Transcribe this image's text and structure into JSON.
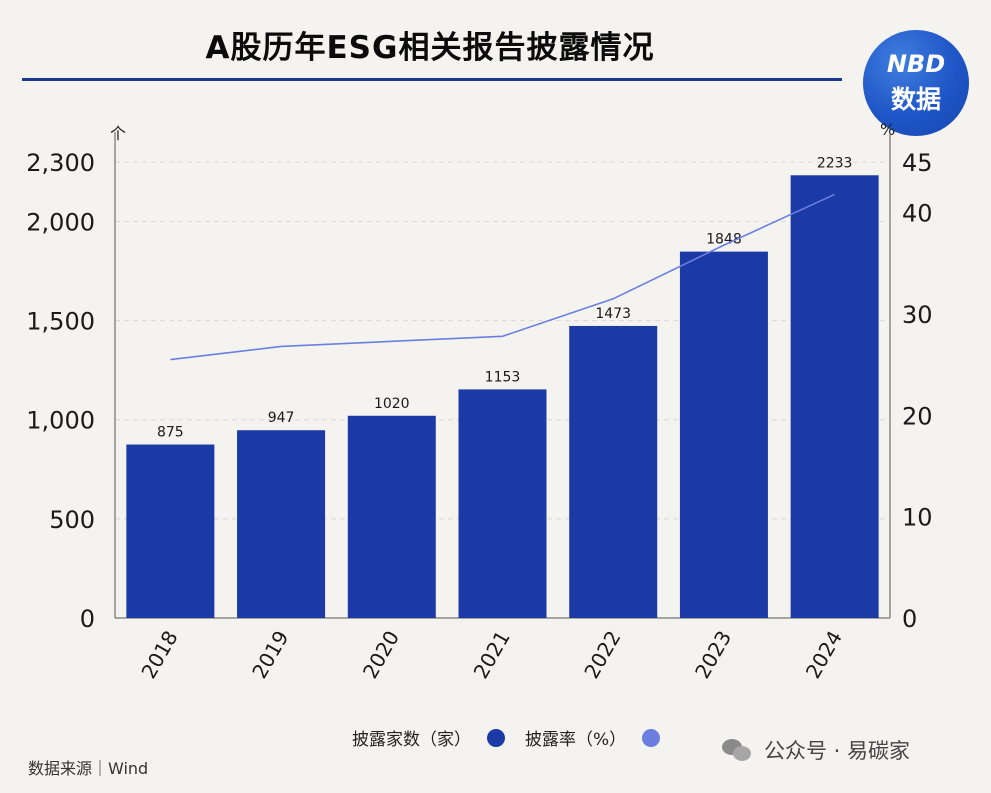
{
  "title": "A股历年ESG相关报告披露情况",
  "logo": {
    "line1": "NBD",
    "line2": "数据"
  },
  "units": {
    "left": "个",
    "right": "%"
  },
  "legend": {
    "bars": "披露家数（家）",
    "line": "披露率（%）"
  },
  "source": "数据来源｜Wind",
  "watermark": "公众号 · 易碳家",
  "colors": {
    "bar": "#1b3aa6",
    "line": "#6b7fe0",
    "rule": "#1a3a8f"
  },
  "chart_data": {
    "type": "bar",
    "categories": [
      "2018",
      "2019",
      "2020",
      "2021",
      "2022",
      "2023",
      "2024"
    ],
    "series": [
      {
        "name": "披露家数（家）",
        "type": "bar",
        "axis": "left",
        "values": [
          875,
          947,
          1020,
          1153,
          1473,
          1848,
          2233
        ]
      },
      {
        "name": "披露率（%）",
        "type": "line",
        "axis": "right",
        "values": [
          25.5,
          26.8,
          27.3,
          27.8,
          31.5,
          36.8,
          41.8
        ]
      }
    ],
    "data_labels": [
      "875",
      "947",
      "1020",
      "1153",
      "1473",
      "1848",
      "2233"
    ],
    "y_left": {
      "ticks": [
        0,
        500,
        1000,
        1500,
        2000,
        2300
      ],
      "tick_labels": [
        "0",
        "500",
        "1,000",
        "1,500",
        "2,000",
        "2,300"
      ],
      "ylim": [
        0,
        2300
      ]
    },
    "y_right": {
      "ticks": [
        0,
        10,
        20,
        30,
        40,
        45
      ],
      "tick_labels": [
        "0",
        "10",
        "20",
        "30",
        "40",
        "45"
      ],
      "ylim": [
        0,
        45
      ]
    },
    "grid": true,
    "legend_position": "bottom"
  }
}
